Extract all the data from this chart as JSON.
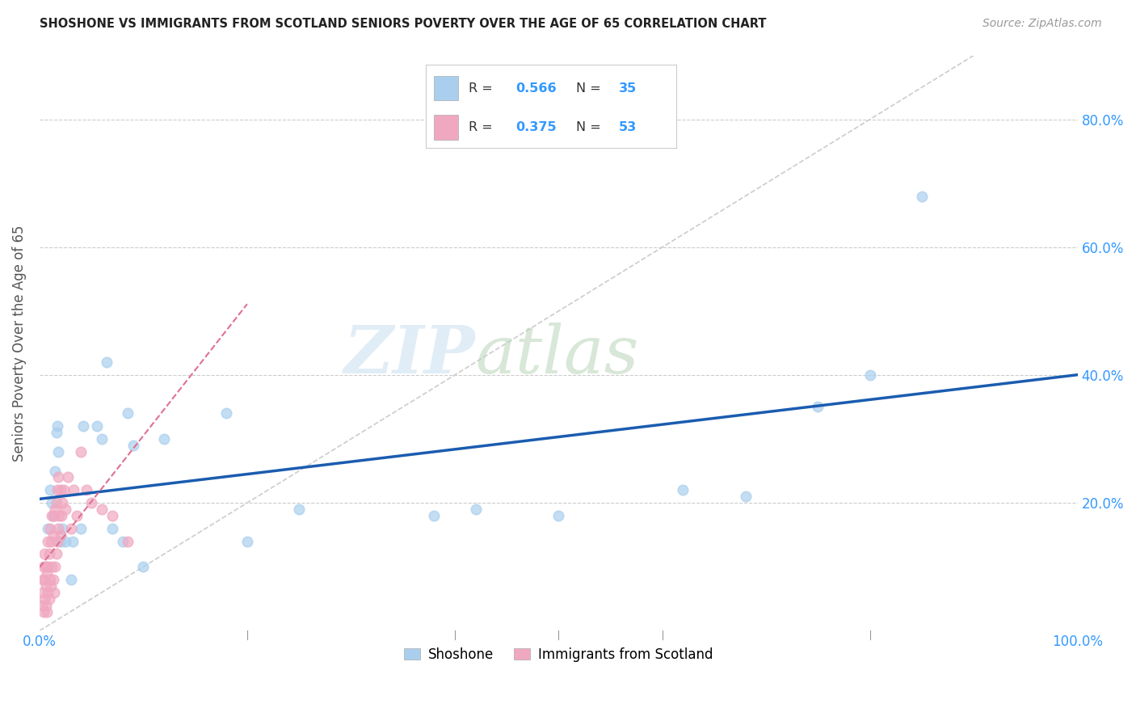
{
  "title": "SHOSHONE VS IMMIGRANTS FROM SCOTLAND SENIORS POVERTY OVER THE AGE OF 65 CORRELATION CHART",
  "source": "Source: ZipAtlas.com",
  "ylabel": "Seniors Poverty Over the Age of 65",
  "xlim": [
    0.0,
    1.0
  ],
  "ylim": [
    0.0,
    0.9
  ],
  "shoshone_R": 0.566,
  "shoshone_N": 35,
  "scotland_R": 0.375,
  "scotland_N": 53,
  "shoshone_color": "#aacfee",
  "scotland_color": "#f0a8c0",
  "trendline_shoshone_color": "#1a5cb0",
  "trendline_scotland_color": "#e07090",
  "background_color": "#ffffff",
  "shoshone_x": [
    0.008,
    0.01,
    0.012,
    0.013,
    0.015,
    0.016,
    0.017,
    0.018,
    0.02,
    0.022,
    0.025,
    0.03,
    0.032,
    0.04,
    0.042,
    0.055,
    0.06,
    0.065,
    0.07,
    0.08,
    0.085,
    0.09,
    0.1,
    0.12,
    0.18,
    0.2,
    0.25,
    0.38,
    0.42,
    0.5,
    0.62,
    0.68,
    0.75,
    0.8,
    0.85
  ],
  "shoshone_y": [
    0.16,
    0.22,
    0.2,
    0.18,
    0.25,
    0.31,
    0.32,
    0.28,
    0.14,
    0.16,
    0.14,
    0.08,
    0.14,
    0.16,
    0.32,
    0.32,
    0.3,
    0.42,
    0.16,
    0.14,
    0.34,
    0.29,
    0.1,
    0.3,
    0.34,
    0.14,
    0.19,
    0.18,
    0.19,
    0.18,
    0.22,
    0.21,
    0.35,
    0.4,
    0.68
  ],
  "scotland_x": [
    0.002,
    0.003,
    0.003,
    0.004,
    0.004,
    0.005,
    0.005,
    0.005,
    0.006,
    0.006,
    0.006,
    0.007,
    0.007,
    0.008,
    0.008,
    0.008,
    0.009,
    0.009,
    0.01,
    0.01,
    0.011,
    0.011,
    0.012,
    0.012,
    0.013,
    0.013,
    0.014,
    0.014,
    0.015,
    0.015,
    0.016,
    0.016,
    0.017,
    0.017,
    0.018,
    0.018,
    0.019,
    0.02,
    0.02,
    0.021,
    0.022,
    0.023,
    0.025,
    0.027,
    0.03,
    0.033,
    0.036,
    0.04,
    0.045,
    0.05,
    0.06,
    0.07,
    0.085
  ],
  "scotland_y": [
    0.04,
    0.06,
    0.08,
    0.03,
    0.1,
    0.05,
    0.08,
    0.12,
    0.04,
    0.07,
    0.1,
    0.03,
    0.09,
    0.06,
    0.1,
    0.14,
    0.05,
    0.12,
    0.08,
    0.16,
    0.07,
    0.14,
    0.1,
    0.18,
    0.08,
    0.15,
    0.06,
    0.18,
    0.1,
    0.19,
    0.12,
    0.2,
    0.14,
    0.22,
    0.16,
    0.24,
    0.18,
    0.15,
    0.22,
    0.18,
    0.2,
    0.22,
    0.19,
    0.24,
    0.16,
    0.22,
    0.18,
    0.28,
    0.22,
    0.2,
    0.19,
    0.18,
    0.14
  ],
  "legend_label_shoshone": "Shoshone",
  "legend_label_scotland": "Immigrants from Scotland",
  "title_color": "#222222",
  "axis_color": "#3399ff",
  "grid_color": "#cccccc",
  "marker_size": 9,
  "watermark_zip_color": "#c8dff0",
  "watermark_atlas_color": "#b8d4b8"
}
